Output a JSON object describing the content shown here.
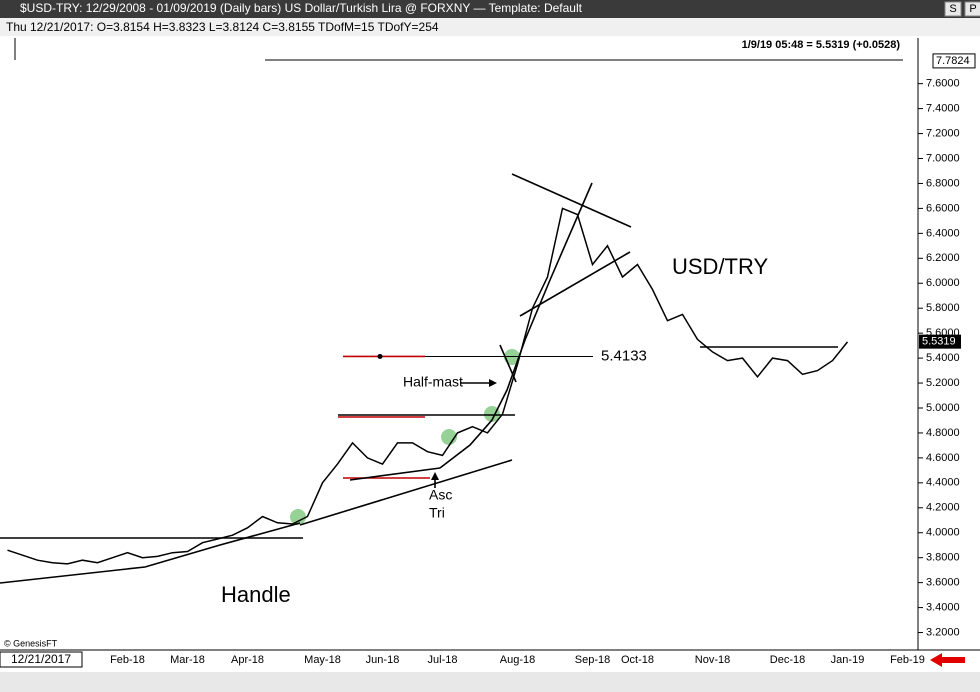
{
  "header": {
    "title": "$USD-TRY:  12/29/2008 - 01/09/2019  (Daily bars)   US Dollar/Turkish Lira @ FORXNY  —  Template: Default",
    "info": "Thu   12/21/2017:  O=3.8154  H=3.8323  L=3.8124  C=3.8155  TDofM=15  TDofY=254",
    "buttons": [
      "S",
      "P"
    ]
  },
  "chart_data": {
    "type": "line",
    "color": "#000000",
    "status": "1/9/19 05:48 = 5.5319 (+0.0528)",
    "cursor_date": "12/21/2017",
    "watermark": "© GenesisFT",
    "high_marker": 7.7824,
    "last_price": 5.5319,
    "level": 5.4133,
    "annotations": [
      "USD/TRY",
      "Handle",
      "Half-mast",
      "Asc",
      "Tri"
    ],
    "categories": [
      null,
      null,
      null,
      null,
      null,
      null,
      null,
      null,
      "Feb-18",
      null,
      null,
      null,
      "Mar-18",
      null,
      null,
      null,
      "Apr-18",
      null,
      null,
      null,
      null,
      "May-18",
      null,
      null,
      null,
      "Jun-18",
      null,
      null,
      null,
      "Jul-18",
      null,
      null,
      null,
      null,
      "Aug-18",
      null,
      null,
      null,
      null,
      "Sep-18",
      null,
      null,
      "Oct-18",
      null,
      null,
      null,
      null,
      "Nov-18",
      null,
      null,
      null,
      null,
      "Dec-18",
      null,
      null,
      null,
      "Jan-19",
      null,
      null,
      null,
      "Feb-19"
    ],
    "values": [
      3.86,
      3.82,
      3.78,
      3.76,
      3.75,
      3.78,
      3.76,
      3.8,
      3.84,
      3.8,
      3.81,
      3.84,
      3.85,
      3.92,
      3.95,
      3.98,
      4.04,
      4.13,
      4.08,
      4.07,
      4.13,
      4.4,
      4.55,
      4.72,
      4.6,
      4.55,
      4.72,
      4.72,
      4.65,
      4.62,
      4.8,
      4.85,
      4.8,
      4.95,
      5.35,
      5.8,
      6.05,
      6.6,
      6.55,
      6.15,
      6.3,
      6.05,
      6.15,
      5.95,
      5.7,
      5.75,
      5.55,
      5.45,
      5.38,
      5.4,
      5.25,
      5.4,
      5.38,
      5.27,
      5.3,
      5.38,
      5.53,
      null,
      null,
      null,
      null
    ],
    "ylim": [
      3.06,
      7.95
    ],
    "yticks": [
      {
        "value": 3.2,
        "label": "3.2000"
      },
      {
        "value": 3.4,
        "label": "3.4000"
      },
      {
        "value": 3.6,
        "label": "3.6000"
      },
      {
        "value": 3.8,
        "label": "3.8000"
      },
      {
        "value": 4.0,
        "label": "4.0000"
      },
      {
        "value": 4.2,
        "label": "4.2000"
      },
      {
        "value": 4.4,
        "label": "4.4000"
      },
      {
        "value": 4.6,
        "label": "4.6000"
      },
      {
        "value": 4.8,
        "label": "4.8000"
      },
      {
        "value": 5.0,
        "label": "5.0000"
      },
      {
        "value": 5.2,
        "label": "5.2000"
      },
      {
        "value": 5.4,
        "label": "5.4000"
      },
      {
        "value": 5.6,
        "label": "5.6000"
      },
      {
        "value": 5.8,
        "label": "5.8000"
      },
      {
        "value": 6.0,
        "label": "6.0000"
      },
      {
        "value": 6.2,
        "label": "6.2000"
      },
      {
        "value": 6.4,
        "label": "6.4000"
      },
      {
        "value": 6.6,
        "label": "6.6000"
      },
      {
        "value": 6.8,
        "label": "6.8000"
      },
      {
        "value": 7.0,
        "label": "7.0000"
      },
      {
        "value": 7.2,
        "label": "7.2000"
      },
      {
        "value": 7.4,
        "label": "7.4000"
      },
      {
        "value": 7.6,
        "label": "7.6000"
      }
    ]
  }
}
